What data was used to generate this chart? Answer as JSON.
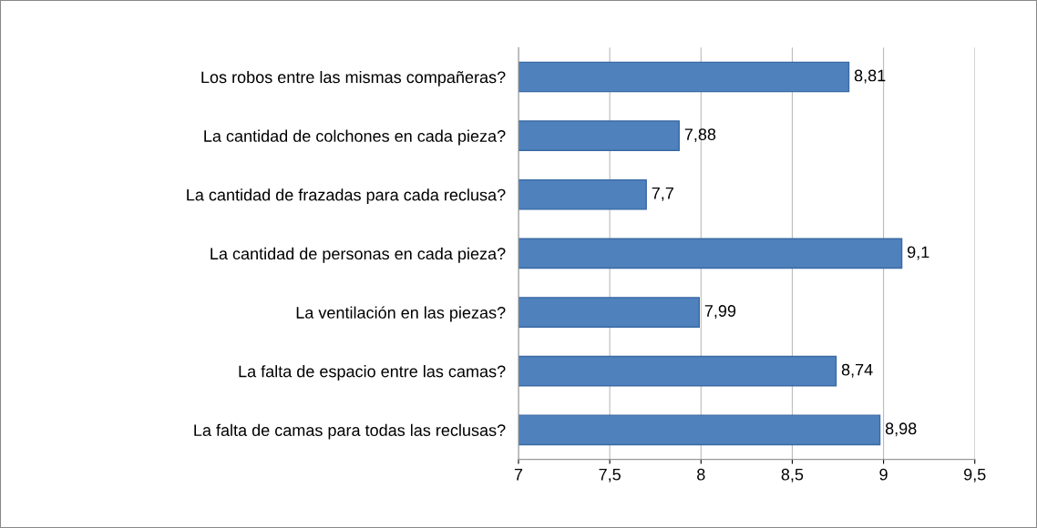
{
  "chart_data": {
    "type": "bar",
    "orientation": "horizontal",
    "categories": [
      "Los robos entre las mismas compañeras?",
      "La cantidad de colchones en cada pieza?",
      "La cantidad de frazadas para cada reclusa?",
      "La cantidad de personas en cada pieza?",
      "La ventilación en las piezas?",
      "La falta de espacio entre las camas?",
      "La falta de camas para todas las reclusas?"
    ],
    "values": [
      8.81,
      7.88,
      7.7,
      9.1,
      7.99,
      8.74,
      8.98
    ],
    "value_labels": [
      "8,81",
      "7,88",
      "7,7",
      "9,1",
      "7,99",
      "8,74",
      "8,98"
    ],
    "color": "#4f81bd",
    "xlim": [
      7,
      9.5
    ],
    "xticks": [
      7,
      {
        "value": 7.5,
        "label": "7,5"
      },
      8,
      {
        "value": 8.5,
        "label": "8,5"
      },
      9,
      {
        "value": 9.5,
        "label": "9,5"
      }
    ],
    "grid": "x"
  }
}
